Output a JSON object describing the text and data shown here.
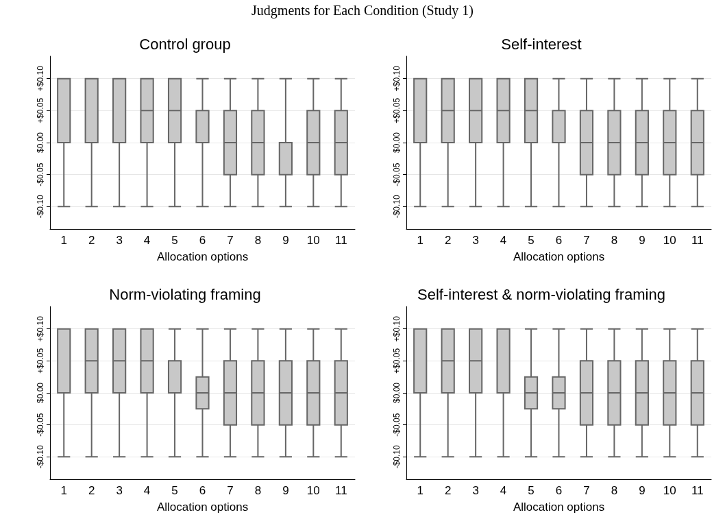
{
  "chart_data": [
    {
      "type": "box",
      "title": "Control group",
      "xlabel": "Allocation options",
      "annotations": [
        "Judgments for Each Condition (Study 1)"
      ],
      "categories": [
        "1",
        "2",
        "3",
        "4",
        "5",
        "6",
        "7",
        "8",
        "9",
        "10",
        "11"
      ],
      "color": "#c8c8c8",
      "ylim": [
        -0.135,
        0.135
      ],
      "yticks": [
        {
          "value": -0.1,
          "label": "-$0.10"
        },
        {
          "value": -0.05,
          "label": "-$0.05"
        },
        {
          "value": 0,
          "label": "$0.00"
        },
        {
          "value": 0.05,
          "label": "+$0.05"
        },
        {
          "value": 0.1,
          "label": "+$0.10"
        }
      ],
      "grid": "y",
      "boxes": [
        {
          "low": -0.1,
          "q1": 0,
          "median": 0.1,
          "q3": 0.1,
          "high": 0.1
        },
        {
          "low": -0.1,
          "q1": 0,
          "median": 0.1,
          "q3": 0.1,
          "high": 0.1
        },
        {
          "low": -0.1,
          "q1": 0,
          "median": 0.1,
          "q3": 0.1,
          "high": 0.1
        },
        {
          "low": -0.1,
          "q1": 0,
          "median": 0.05,
          "q3": 0.1,
          "high": 0.1
        },
        {
          "low": -0.1,
          "q1": 0,
          "median": 0.05,
          "q3": 0.1,
          "high": 0.1
        },
        {
          "low": -0.1,
          "q1": 0,
          "median": 0,
          "q3": 0.05,
          "high": 0.1
        },
        {
          "low": -0.1,
          "q1": -0.05,
          "median": 0,
          "q3": 0.05,
          "high": 0.1
        },
        {
          "low": -0.1,
          "q1": -0.05,
          "median": 0,
          "q3": 0.05,
          "high": 0.1
        },
        {
          "low": -0.1,
          "q1": -0.05,
          "median": 0,
          "q3": 0,
          "high": 0.1
        },
        {
          "low": -0.1,
          "q1": -0.05,
          "median": 0,
          "q3": 0.05,
          "high": 0.1
        },
        {
          "low": -0.1,
          "q1": -0.05,
          "median": 0,
          "q3": 0.05,
          "high": 0.1
        }
      ]
    },
    {
      "type": "box",
      "title": "Self-interest",
      "xlabel": "Allocation options",
      "categories": [
        "1",
        "2",
        "3",
        "4",
        "5",
        "6",
        "7",
        "8",
        "9",
        "10",
        "11"
      ],
      "color": "#c8c8c8",
      "ylim": [
        -0.135,
        0.135
      ],
      "yticks": [
        {
          "value": -0.1,
          "label": "-$0.10"
        },
        {
          "value": -0.05,
          "label": "-$0.05"
        },
        {
          "value": 0,
          "label": "$0.00"
        },
        {
          "value": 0.05,
          "label": "+$0.05"
        },
        {
          "value": 0.1,
          "label": "+$0.10"
        }
      ],
      "grid": "y",
      "boxes": [
        {
          "low": -0.1,
          "q1": 0,
          "median": 0.1,
          "q3": 0.1,
          "high": 0.1
        },
        {
          "low": -0.1,
          "q1": 0,
          "median": 0.05,
          "q3": 0.1,
          "high": 0.1
        },
        {
          "low": -0.1,
          "q1": 0,
          "median": 0.05,
          "q3": 0.1,
          "high": 0.1
        },
        {
          "low": -0.1,
          "q1": 0,
          "median": 0.05,
          "q3": 0.1,
          "high": 0.1
        },
        {
          "low": -0.1,
          "q1": 0,
          "median": 0.05,
          "q3": 0.1,
          "high": 0.1
        },
        {
          "low": -0.1,
          "q1": 0,
          "median": 0,
          "q3": 0.05,
          "high": 0.1
        },
        {
          "low": -0.1,
          "q1": -0.05,
          "median": 0,
          "q3": 0.05,
          "high": 0.1
        },
        {
          "low": -0.1,
          "q1": -0.05,
          "median": 0,
          "q3": 0.05,
          "high": 0.1
        },
        {
          "low": -0.1,
          "q1": -0.05,
          "median": 0,
          "q3": 0.05,
          "high": 0.1
        },
        {
          "low": -0.1,
          "q1": -0.05,
          "median": 0,
          "q3": 0.05,
          "high": 0.1
        },
        {
          "low": -0.1,
          "q1": -0.05,
          "median": 0,
          "q3": 0.05,
          "high": 0.1
        }
      ]
    },
    {
      "type": "box",
      "title": "Norm-violating framing",
      "xlabel": "Allocation options",
      "categories": [
        "1",
        "2",
        "3",
        "4",
        "5",
        "6",
        "7",
        "8",
        "9",
        "10",
        "11"
      ],
      "color": "#c8c8c8",
      "ylim": [
        -0.135,
        0.135
      ],
      "yticks": [
        {
          "value": -0.1,
          "label": "-$0.10"
        },
        {
          "value": -0.05,
          "label": "-$0.05"
        },
        {
          "value": 0,
          "label": "$0.00"
        },
        {
          "value": 0.05,
          "label": "+$0.05"
        },
        {
          "value": 0.1,
          "label": "+$0.10"
        }
      ],
      "grid": "y",
      "boxes": [
        {
          "low": -0.1,
          "q1": 0,
          "median": 0.1,
          "q3": 0.1,
          "high": 0.1
        },
        {
          "low": -0.1,
          "q1": 0,
          "median": 0.05,
          "q3": 0.1,
          "high": 0.1
        },
        {
          "low": -0.1,
          "q1": 0,
          "median": 0.05,
          "q3": 0.1,
          "high": 0.1
        },
        {
          "low": -0.1,
          "q1": 0,
          "median": 0.05,
          "q3": 0.1,
          "high": 0.1
        },
        {
          "low": -0.1,
          "q1": 0,
          "median": 0,
          "q3": 0.05,
          "high": 0.1
        },
        {
          "low": -0.1,
          "q1": -0.025,
          "median": 0,
          "q3": 0.025,
          "high": 0.1
        },
        {
          "low": -0.1,
          "q1": -0.05,
          "median": 0,
          "q3": 0.05,
          "high": 0.1
        },
        {
          "low": -0.1,
          "q1": -0.05,
          "median": 0,
          "q3": 0.05,
          "high": 0.1
        },
        {
          "low": -0.1,
          "q1": -0.05,
          "median": 0,
          "q3": 0.05,
          "high": 0.1
        },
        {
          "low": -0.1,
          "q1": -0.05,
          "median": 0,
          "q3": 0.05,
          "high": 0.1
        },
        {
          "low": -0.1,
          "q1": -0.05,
          "median": 0,
          "q3": 0.05,
          "high": 0.1
        }
      ]
    },
    {
      "type": "box",
      "title": "Self-interest & norm-violating framing",
      "xlabel": "Allocation options",
      "categories": [
        "1",
        "2",
        "3",
        "4",
        "5",
        "6",
        "7",
        "8",
        "9",
        "10",
        "11"
      ],
      "color": "#c8c8c8",
      "ylim": [
        -0.135,
        0.135
      ],
      "yticks": [
        {
          "value": -0.1,
          "label": "-$0.10"
        },
        {
          "value": -0.05,
          "label": "-$0.05"
        },
        {
          "value": 0,
          "label": "$0.00"
        },
        {
          "value": 0.05,
          "label": "+$0.05"
        },
        {
          "value": 0.1,
          "label": "+$0.10"
        }
      ],
      "grid": "y",
      "boxes": [
        {
          "low": -0.1,
          "q1": 0,
          "median": 0.1,
          "q3": 0.1,
          "high": 0.1
        },
        {
          "low": -0.1,
          "q1": 0,
          "median": 0.05,
          "q3": 0.1,
          "high": 0.1
        },
        {
          "low": -0.1,
          "q1": 0,
          "median": 0.05,
          "q3": 0.1,
          "high": 0.1
        },
        {
          "low": -0.1,
          "q1": 0,
          "median": 0,
          "q3": 0.1,
          "high": 0.1
        },
        {
          "low": -0.1,
          "q1": -0.025,
          "median": 0,
          "q3": 0.025,
          "high": 0.1
        },
        {
          "low": -0.1,
          "q1": -0.025,
          "median": 0,
          "q3": 0.025,
          "high": 0.1
        },
        {
          "low": -0.1,
          "q1": -0.05,
          "median": 0,
          "q3": 0.05,
          "high": 0.1
        },
        {
          "low": -0.1,
          "q1": -0.05,
          "median": 0,
          "q3": 0.05,
          "high": 0.1
        },
        {
          "low": -0.1,
          "q1": -0.05,
          "median": 0,
          "q3": 0.05,
          "high": 0.1
        },
        {
          "low": -0.1,
          "q1": -0.05,
          "median": 0,
          "q3": 0.05,
          "high": 0.1
        },
        {
          "low": -0.1,
          "q1": -0.05,
          "median": 0,
          "q3": 0.05,
          "high": 0.1
        }
      ]
    }
  ]
}
